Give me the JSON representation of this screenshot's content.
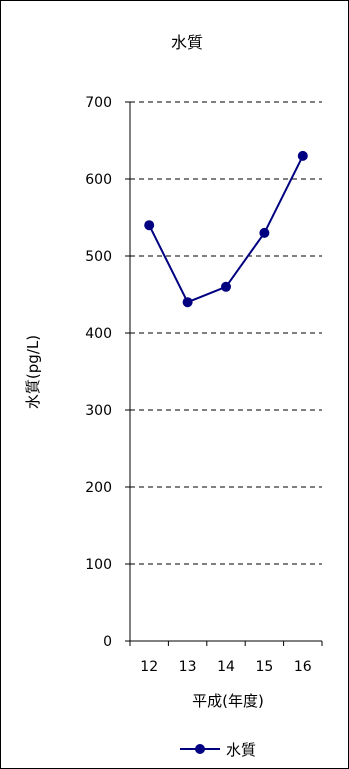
{
  "chart_data": {
    "type": "line",
    "title": "水質",
    "xlabel": "平成(年度)",
    "ylabel": "水質(pg/L)",
    "categories": [
      "12",
      "13",
      "14",
      "15",
      "16"
    ],
    "series": [
      {
        "name": "水質",
        "values": [
          540,
          440,
          460,
          530,
          630
        ],
        "color": "#000080"
      }
    ],
    "ylim": [
      0,
      700
    ],
    "yticks": [
      "0",
      "100",
      "200",
      "300",
      "400",
      "500",
      "600",
      "700"
    ],
    "grid": true,
    "grid_style": "dashed",
    "legend_position": "bottom"
  }
}
